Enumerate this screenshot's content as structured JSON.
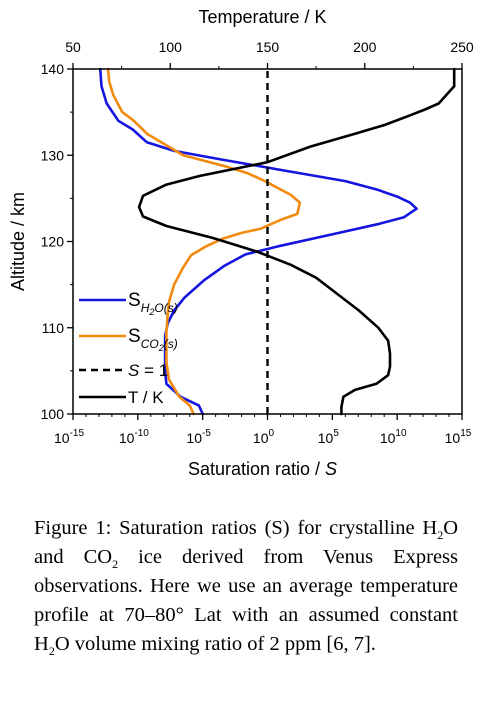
{
  "chart_data": {
    "type": "line",
    "title": "",
    "x_bottom": {
      "label_prefix": "Saturation ratio / ",
      "label_italic": "S",
      "scale": "log",
      "range": [
        1e-15,
        1000000000000000.0
      ],
      "ticks": [
        {
          "value": -15,
          "base": "10",
          "exp": "-15"
        },
        {
          "value": -10,
          "base": "10",
          "exp": "-10"
        },
        {
          "value": -5,
          "base": "10",
          "exp": "-5"
        },
        {
          "value": 0,
          "base": "10",
          "exp": "0"
        },
        {
          "value": 5,
          "base": "10",
          "exp": "5"
        },
        {
          "value": 10,
          "base": "10",
          "exp": "10"
        },
        {
          "value": 15,
          "base": "10",
          "exp": "15"
        }
      ]
    },
    "x_top": {
      "label": "Temperature / K",
      "range": [
        50,
        250
      ],
      "ticks": [
        "50",
        "100",
        "150",
        "200",
        "250"
      ]
    },
    "y": {
      "label": "Altitude / km",
      "range": [
        100,
        140
      ],
      "ticks": [
        "100",
        "110",
        "120",
        "130",
        "140"
      ]
    },
    "grid": false,
    "legend": {
      "position": "left",
      "entries": [
        {
          "key": "sh2o",
          "main": "S",
          "sub_parts": [
            [
              "H",
              false
            ],
            [
              "2",
              true
            ],
            [
              "O(s)",
              false
            ]
          ]
        },
        {
          "key": "sco2",
          "main": "S",
          "sub_parts": [
            [
              "CO",
              false
            ],
            [
              "2",
              true
            ],
            [
              "(s)",
              false
            ]
          ]
        },
        {
          "key": "s1",
          "text_italic": "S",
          "text": " = 1"
        },
        {
          "key": "temp",
          "text": "T / K"
        }
      ]
    },
    "series": [
      {
        "key": "sh2o",
        "axis": "log_s",
        "color": "#1515e0",
        "dash": "",
        "points": [
          [
            -12.9,
            140
          ],
          [
            -12.8,
            138
          ],
          [
            -12.4,
            136
          ],
          [
            -11.5,
            134
          ],
          [
            -10.4,
            133
          ],
          [
            -9.3,
            131.5
          ],
          [
            -7.2,
            130.5
          ],
          [
            -3.5,
            129.5
          ],
          [
            1.0,
            128.3
          ],
          [
            6.0,
            127
          ],
          [
            8.5,
            126
          ],
          [
            10.0,
            125.2
          ],
          [
            11.0,
            124.5
          ],
          [
            11.5,
            123.8
          ],
          [
            10.5,
            122.8
          ],
          [
            8.5,
            122
          ],
          [
            5.5,
            121
          ],
          [
            1.0,
            119.5
          ],
          [
            -1.7,
            118.5
          ],
          [
            -3.3,
            117.2
          ],
          [
            -4.9,
            115.5
          ],
          [
            -6.4,
            113.5
          ],
          [
            -7.2,
            112
          ],
          [
            -7.7,
            110.5
          ],
          [
            -7.9,
            109
          ],
          [
            -7.9,
            105
          ],
          [
            -7.8,
            103.5
          ],
          [
            -6.7,
            102
          ],
          [
            -5.3,
            101
          ],
          [
            -5.0,
            100
          ]
        ]
      },
      {
        "key": "sco2",
        "axis": "log_s",
        "color": "#f28a0e",
        "dash": "",
        "points": [
          [
            -12.3,
            140
          ],
          [
            -12.2,
            138.5
          ],
          [
            -11.9,
            137
          ],
          [
            -11.2,
            135
          ],
          [
            -10.3,
            134
          ],
          [
            -9.3,
            132.5
          ],
          [
            -6.5,
            130
          ],
          [
            -3.2,
            128.7
          ],
          [
            -1.5,
            127.9
          ],
          [
            -0.2,
            127
          ],
          [
            1.8,
            125.4
          ],
          [
            2.5,
            124.5
          ],
          [
            2.3,
            123.2
          ],
          [
            1.0,
            122.5
          ],
          [
            -0.5,
            121.5
          ],
          [
            -2.0,
            121
          ],
          [
            -3.5,
            120.3
          ],
          [
            -4.8,
            119.4
          ],
          [
            -5.9,
            118.4
          ],
          [
            -6.5,
            117
          ],
          [
            -7.2,
            115
          ],
          [
            -7.6,
            113
          ],
          [
            -7.7,
            111.5
          ],
          [
            -7.8,
            109.5
          ],
          [
            -7.8,
            106
          ],
          [
            -7.6,
            104
          ],
          [
            -6.8,
            102
          ],
          [
            -6.0,
            101
          ],
          [
            -5.7,
            100
          ]
        ]
      },
      {
        "key": "s1",
        "axis": "log_s",
        "color": "#000000",
        "dash": "7,5",
        "points": [
          [
            0,
            100
          ],
          [
            0,
            140
          ]
        ]
      },
      {
        "key": "temp",
        "axis": "temperature_k",
        "color": "#000000",
        "dash": "",
        "points": [
          [
            246,
            140
          ],
          [
            246,
            138
          ],
          [
            242,
            137
          ],
          [
            238,
            136
          ],
          [
            231,
            135.3
          ],
          [
            223,
            134.6
          ],
          [
            210,
            133.5
          ],
          [
            195,
            132.5
          ],
          [
            172,
            131
          ],
          [
            150,
            129.2
          ],
          [
            115,
            127.6
          ],
          [
            98,
            126.6
          ],
          [
            86,
            125.3
          ],
          [
            84,
            124
          ],
          [
            86,
            122.9
          ],
          [
            98,
            121.8
          ],
          [
            122,
            120.4
          ],
          [
            145,
            118.8
          ],
          [
            162,
            117.3
          ],
          [
            175,
            115.8
          ],
          [
            186,
            113.9
          ],
          [
            197,
            112
          ],
          [
            207,
            110
          ],
          [
            212,
            108.5
          ],
          [
            213,
            107
          ],
          [
            213,
            105.5
          ],
          [
            212,
            104.5
          ],
          [
            206,
            103.5
          ],
          [
            195,
            102.8
          ],
          [
            189,
            102
          ],
          [
            188,
            100.8
          ],
          [
            188,
            100
          ]
        ]
      }
    ]
  },
  "caption": {
    "parts": [
      [
        "Figure 1: Saturation ratios (S) for crystalline H",
        false
      ],
      [
        "2",
        true
      ],
      [
        "O and CO",
        false
      ],
      [
        "2",
        true
      ],
      [
        " ice derived from Venus Express observations. Here we use an average temperature profile at 70–80° Lat with an assumed constant H",
        false
      ],
      [
        "2",
        true
      ],
      [
        "O volume mixing ratio of 2 ppm [6, 7].",
        false
      ]
    ]
  }
}
